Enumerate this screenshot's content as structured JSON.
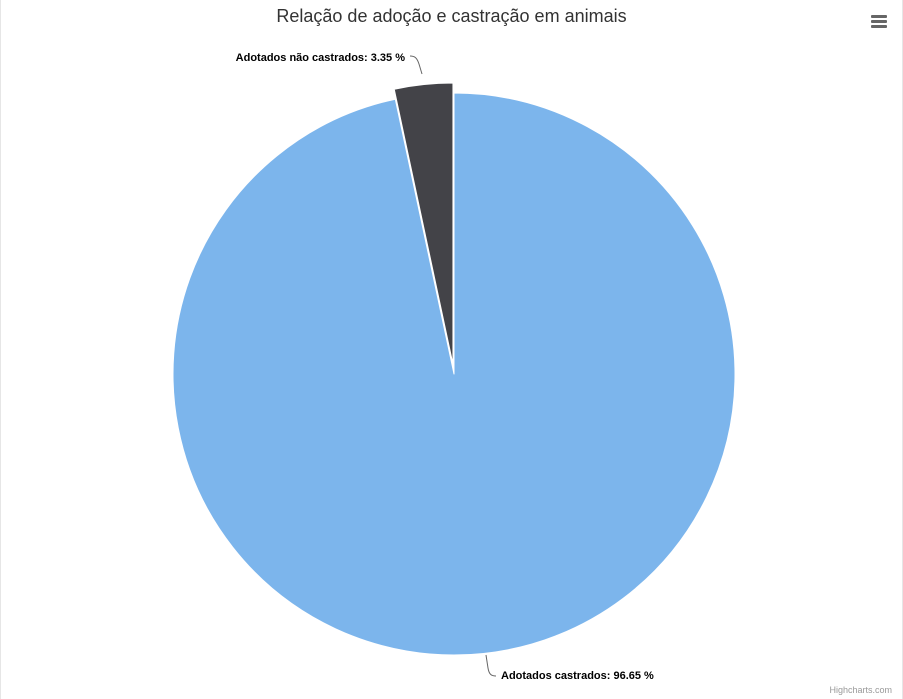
{
  "chart_data": {
    "type": "pie",
    "title": "Relação de adoção e castração em animais",
    "series": [
      {
        "name": "",
        "points": [
          {
            "name": "Adotados não castrados",
            "value": 3.35,
            "color": "#434348",
            "sliced": true
          },
          {
            "name": "Adotados castrados",
            "value": 96.65,
            "color": "#7cb5ec",
            "sliced": false
          }
        ]
      }
    ],
    "data_labels": [
      "Adotados não castrados: 3.35 %",
      "Adotados castrados: 96.65 %"
    ]
  },
  "menu": {
    "icon": "hamburger-menu-icon"
  },
  "credits": {
    "text": "Highcharts.com"
  }
}
